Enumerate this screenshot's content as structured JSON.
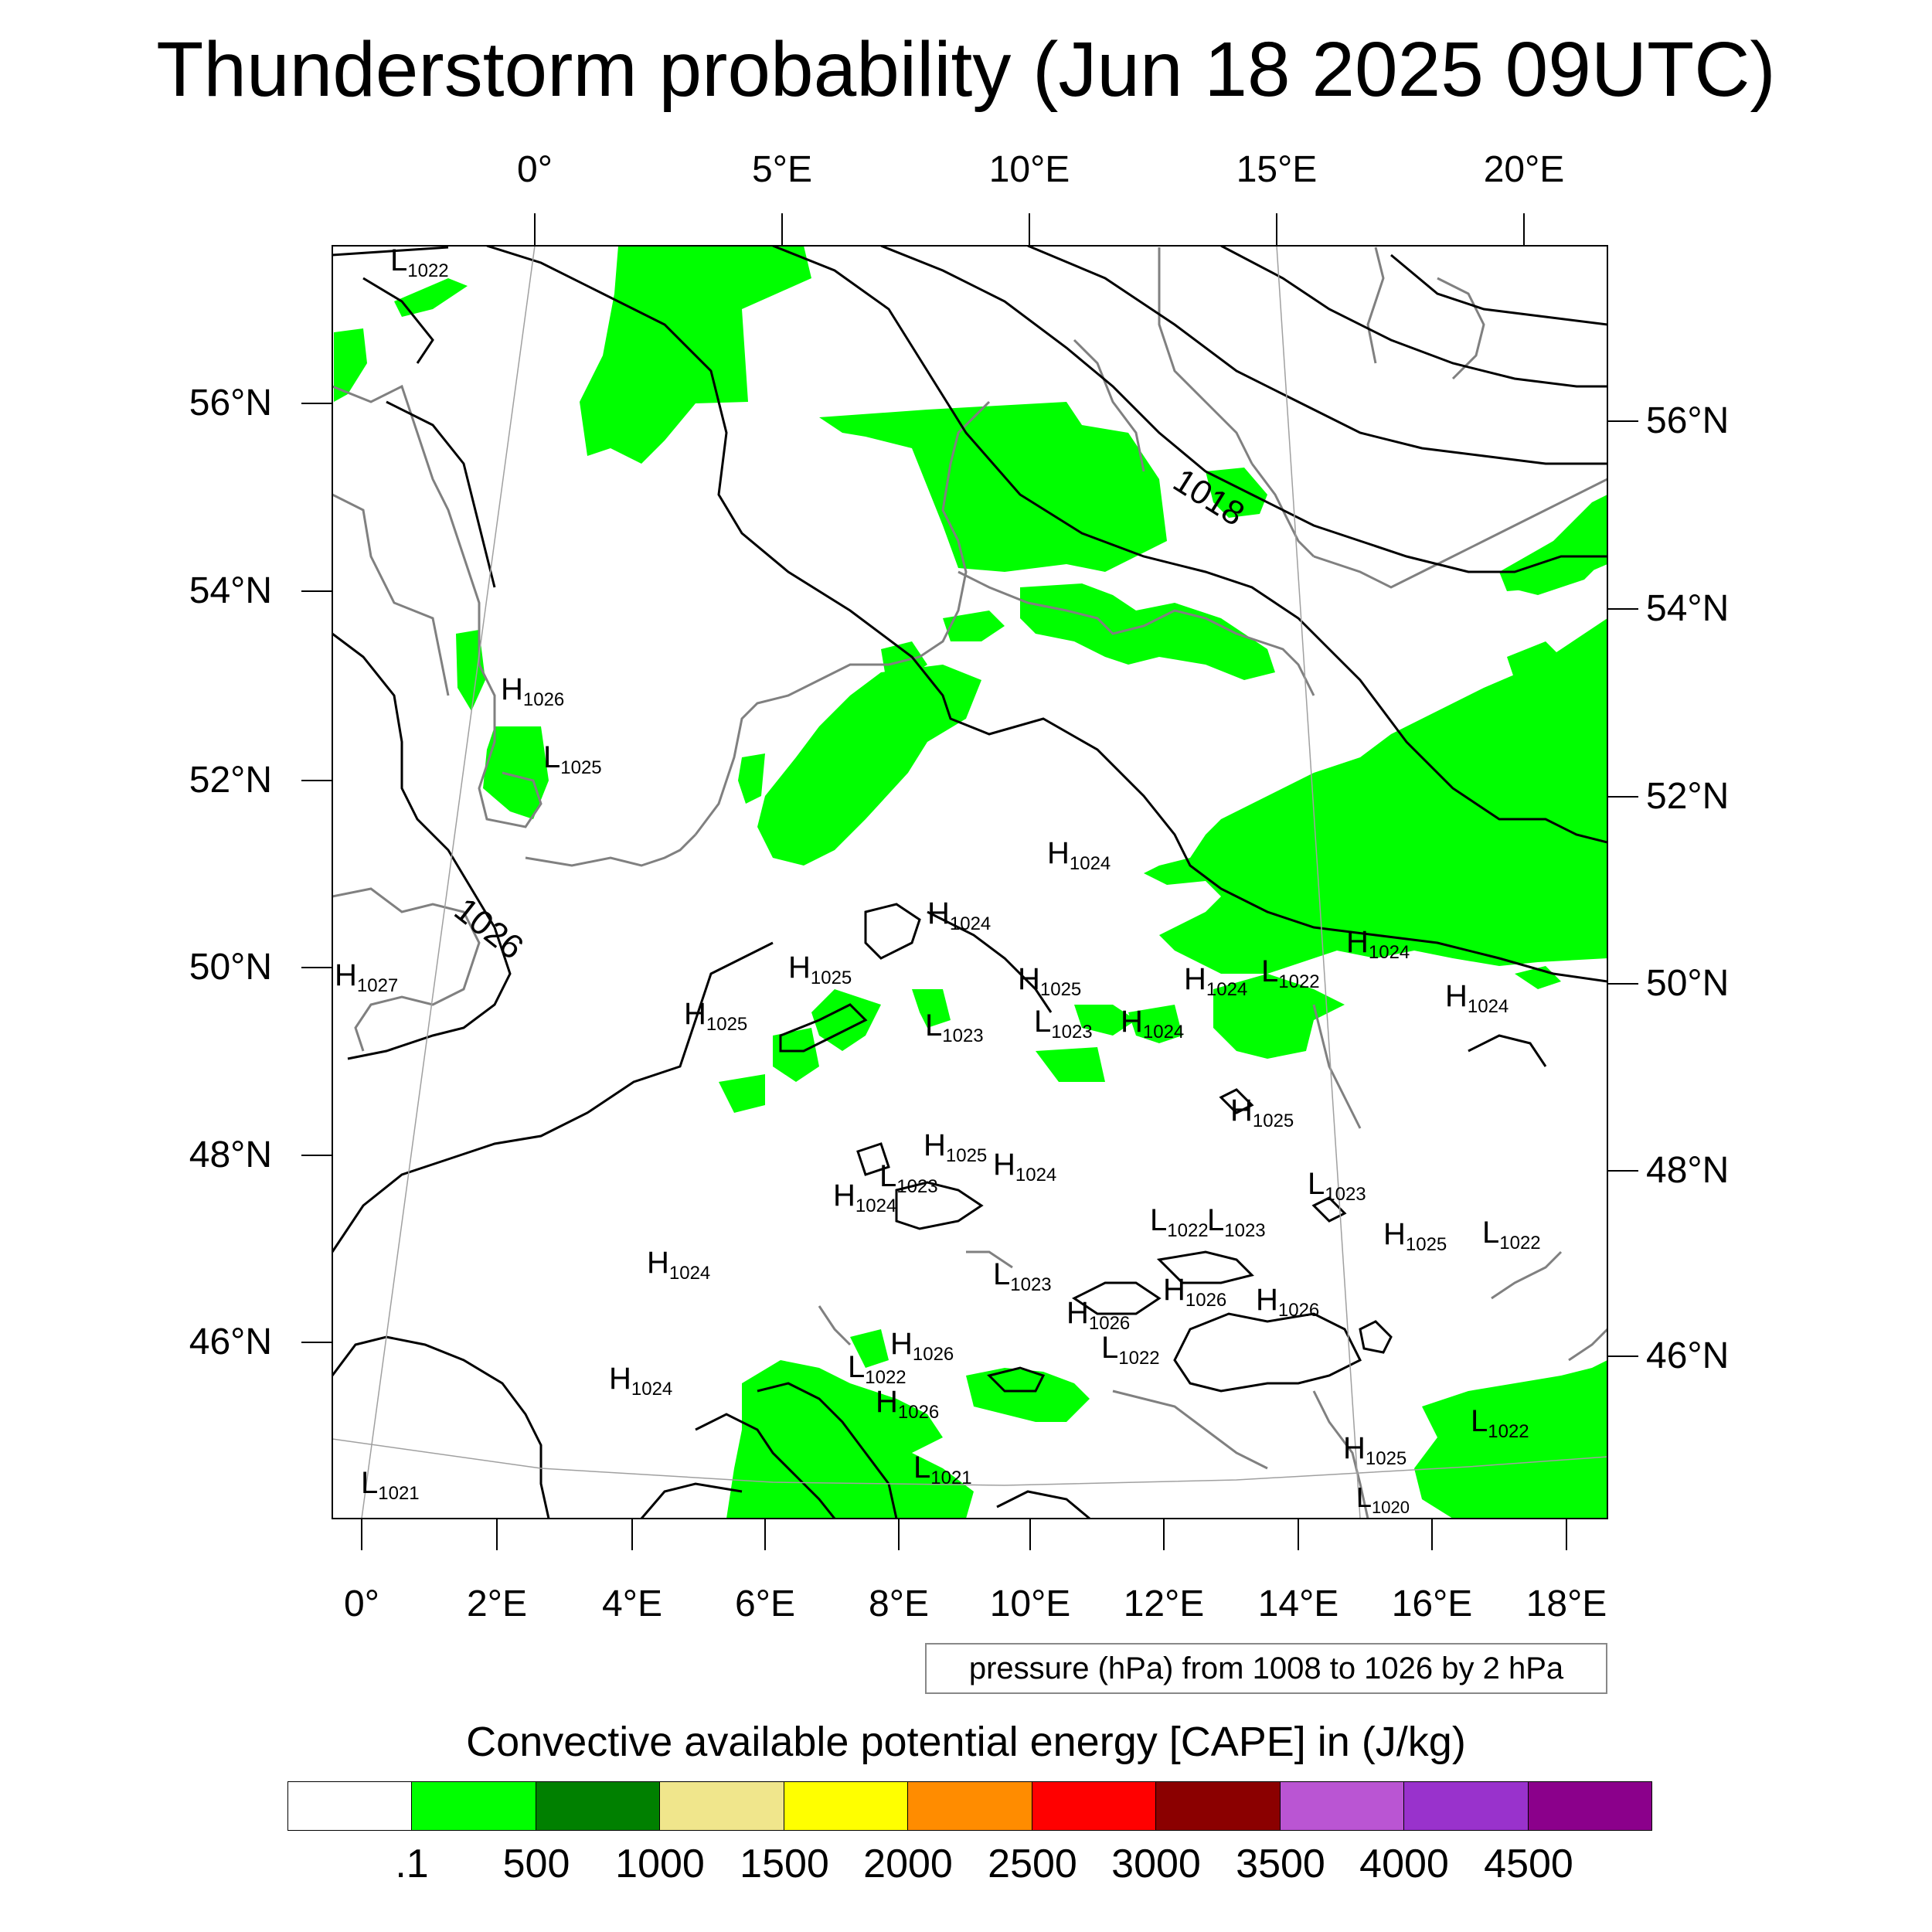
{
  "title": "Thunderstorm probability (Jun 18 2025 09UTC)",
  "axes": {
    "top_lon_labels": [
      "0°",
      "5°E",
      "10°E",
      "15°E",
      "20°E"
    ],
    "bottom_lon_labels": [
      "0°",
      "2°E",
      "4°E",
      "6°E",
      "8°E",
      "10°E",
      "12°E",
      "14°E",
      "16°E",
      "18°E"
    ],
    "left_lat_labels": [
      "56°N",
      "54°N",
      "52°N",
      "50°N",
      "48°N",
      "46°N"
    ],
    "right_lat_labels": [
      "56°N",
      "54°N",
      "52°N",
      "50°N",
      "48°N",
      "46°N"
    ]
  },
  "contour_label": "1018",
  "contour_label_2": "1026",
  "pressure_centers": [
    {
      "type": "L",
      "value": "1022"
    },
    {
      "type": "H",
      "value": "1026"
    },
    {
      "type": "L",
      "value": "1025"
    },
    {
      "type": "H",
      "value": "1024"
    },
    {
      "type": "H",
      "value": "1024"
    },
    {
      "type": "H",
      "value": "1027"
    },
    {
      "type": "H",
      "value": "1025"
    },
    {
      "type": "H",
      "value": "1025"
    },
    {
      "type": "H",
      "value": "1025"
    },
    {
      "type": "L",
      "value": "1023"
    },
    {
      "type": "L",
      "value": "1023"
    },
    {
      "type": "H",
      "value": "1024"
    },
    {
      "type": "H",
      "value": "1024"
    },
    {
      "type": "L",
      "value": "1022"
    },
    {
      "type": "H",
      "value": "1024"
    },
    {
      "type": "H",
      "value": "1024"
    },
    {
      "type": "H",
      "value": "1025"
    },
    {
      "type": "H",
      "value": "1025"
    },
    {
      "type": "H",
      "value": "1024"
    },
    {
      "type": "L",
      "value": "1023"
    },
    {
      "type": "H",
      "value": "1024"
    },
    {
      "type": "L",
      "value": "1023"
    },
    {
      "type": "L",
      "value": "1022"
    },
    {
      "type": "L",
      "value": "1023"
    },
    {
      "type": "H",
      "value": "1025"
    },
    {
      "type": "L",
      "value": "1022"
    },
    {
      "type": "H",
      "value": "1024"
    },
    {
      "type": "L",
      "value": "1023"
    },
    {
      "type": "H",
      "value": "1026"
    },
    {
      "type": "H",
      "value": "1026"
    },
    {
      "type": "H",
      "value": "1026"
    },
    {
      "type": "H",
      "value": "1026"
    },
    {
      "type": "L",
      "value": "1022"
    },
    {
      "type": "L",
      "value": "1022"
    },
    {
      "type": "H",
      "value": "1024"
    },
    {
      "type": "H",
      "value": "1026"
    },
    {
      "type": "L",
      "value": "1021"
    },
    {
      "type": "L",
      "value": "1022"
    },
    {
      "type": "H",
      "value": "1025"
    },
    {
      "type": "L",
      "value": "1021"
    },
    {
      "type": "L",
      "value": "1020"
    }
  ],
  "pressure_info": "pressure (hPa) from 1008 to 1026 by 2 hPa",
  "colorbar": {
    "title": "Convective available potential energy [CAPE] in (J/kg)",
    "colors": [
      "#ffffff",
      "#00ff00",
      "#008000",
      "#f0e68c",
      "#ffff00",
      "#ff8c00",
      "#ff0000",
      "#8b0000",
      "#ba55d3",
      "#9932cc",
      "#8b008b"
    ],
    "labels": [
      ".1",
      "500",
      "1000",
      "1500",
      "2000",
      "2500",
      "3000",
      "3500",
      "4000",
      "4500"
    ]
  },
  "colors": {
    "cape_fill": "#00ff00",
    "coastline": "#808080",
    "isobar": "#000000"
  }
}
